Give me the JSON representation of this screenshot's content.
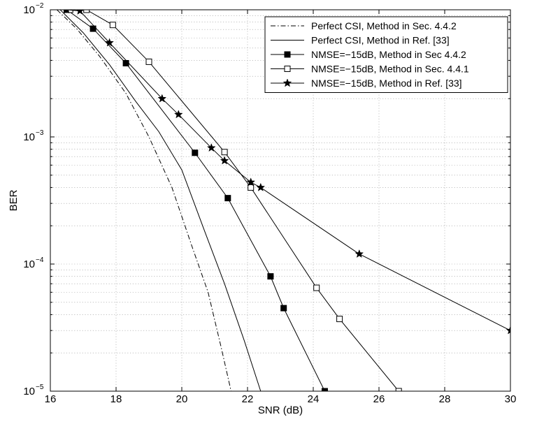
{
  "chart_data": {
    "type": "line",
    "title": "",
    "xlabel": "SNR (dB)",
    "ylabel": "BER",
    "xlim": [
      16,
      30
    ],
    "ylim": [
      1e-05,
      0.01
    ],
    "yscale": "log",
    "grid": true,
    "legend_position": "top-right",
    "x_ticks": [
      16,
      18,
      20,
      22,
      24,
      26,
      28,
      30
    ],
    "y_ticks": [
      {
        "value": 1e-05,
        "base": "10",
        "exp": "−5"
      },
      {
        "value": 0.0001,
        "base": "10",
        "exp": "−4"
      },
      {
        "value": 0.001,
        "base": "10",
        "exp": "−3"
      },
      {
        "value": 0.01,
        "base": "10",
        "exp": "−2"
      }
    ],
    "series": [
      {
        "name": "Perfect CSI, Method in Sec. 4.4.2",
        "line_style": "dashdot",
        "marker": "none",
        "x": [
          16.2,
          16.8,
          17.5,
          18.3,
          19.0,
          19.7,
          20.3,
          20.8,
          21.2,
          21.5
        ],
        "y": [
          0.01,
          0.0071,
          0.0043,
          0.0022,
          0.001,
          0.0004,
          0.00014,
          6e-05,
          2.2e-05,
          1e-05
        ]
      },
      {
        "name": "Perfect CSI, Method in Ref. [33]",
        "line_style": "solid",
        "marker": "none",
        "x": [
          16.3,
          17.0,
          17.8,
          18.6,
          19.3,
          20.0,
          20.7,
          21.3,
          21.9,
          22.4
        ],
        "y": [
          0.01,
          0.0066,
          0.0037,
          0.0019,
          0.0011,
          0.00055,
          0.00018,
          7e-05,
          2.5e-05,
          1e-05
        ]
      },
      {
        "name": "NMSE=−15dB, Method in Sec 4.4.2",
        "line_style": "solid",
        "marker": "filled-square",
        "x": [
          16.5,
          17.3,
          18.3,
          20.4,
          21.4,
          22.7,
          23.1,
          24.35
        ],
        "y": [
          0.01,
          0.0071,
          0.0038,
          0.00075,
          0.00033,
          8e-05,
          4.5e-05,
          1e-05
        ]
      },
      {
        "name": "NMSE=−15dB, Method in Sec. 4.4.1",
        "line_style": "solid",
        "marker": "open-square",
        "x": [
          16.6,
          17.1,
          17.9,
          19.0,
          21.3,
          22.1,
          24.1,
          24.8,
          26.6
        ],
        "y": [
          0.01,
          0.01,
          0.0076,
          0.0039,
          0.00076,
          0.0004,
          6.5e-05,
          3.7e-05,
          1e-05
        ]
      },
      {
        "name": "NMSE=−15dB, Method in Ref. [33]",
        "line_style": "solid",
        "marker": "star",
        "x": [
          16.5,
          16.9,
          17.8,
          19.4,
          19.9,
          20.9,
          21.3,
          22.1,
          22.4,
          25.4,
          30.0
        ],
        "y": [
          0.01,
          0.0098,
          0.0055,
          0.002,
          0.0015,
          0.00082,
          0.00065,
          0.00044,
          0.0004,
          0.00012,
          3e-05
        ]
      }
    ]
  }
}
